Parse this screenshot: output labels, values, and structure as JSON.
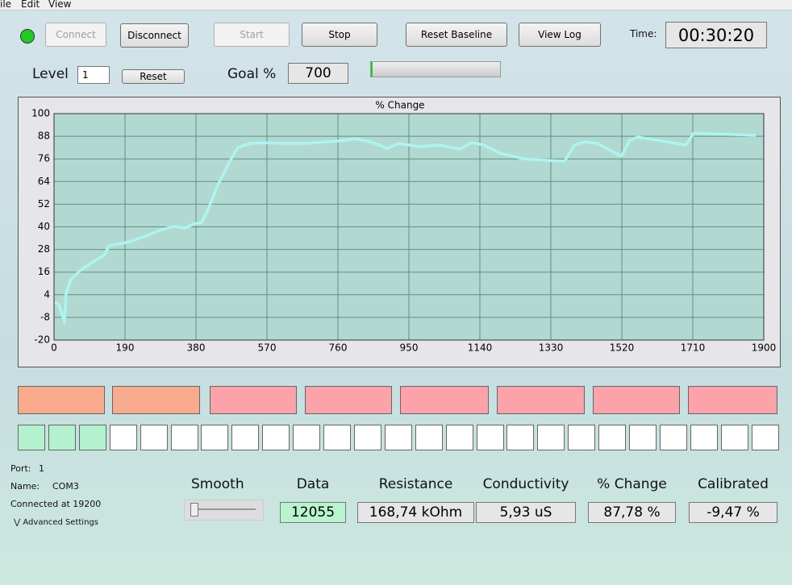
{
  "menu": [
    "ile",
    "Edit",
    "View"
  ],
  "toolbar": {
    "connect": "Connect",
    "disconnect": "Disconnect",
    "start": "Start",
    "stop": "Stop",
    "reset_baseline": "Reset Baseline",
    "view_log": "View Log",
    "time_label": "Time:",
    "time": "00:30:20"
  },
  "level": {
    "label": "Level",
    "value": "1",
    "reset": "Reset",
    "goal_label": "Goal %",
    "goal": "700"
  },
  "chart_data": {
    "type": "line",
    "title": "% Change",
    "x": [
      0,
      13,
      28,
      32,
      45,
      71,
      104,
      136,
      147,
      201,
      244,
      287,
      320,
      352,
      374,
      395,
      412,
      438,
      471,
      492,
      525,
      568,
      611,
      676,
      762,
      806,
      849,
      892,
      924,
      978,
      1032,
      1086,
      1118,
      1151,
      1194,
      1259,
      1324,
      1367,
      1393,
      1421,
      1454,
      1519,
      1540,
      1562,
      1626,
      1691,
      1713,
      1756,
      1821,
      1879
    ],
    "series": [
      {
        "color": "#aef4f0",
        "values": [
          0.1,
          -1.2,
          -10.6,
          4.3,
          12,
          17,
          21.4,
          25.3,
          30,
          32,
          35,
          38.5,
          40.2,
          39.4,
          41.5,
          42.3,
          49,
          62,
          74.8,
          82,
          84.2,
          84.6,
          84.2,
          84.2,
          85.5,
          86.7,
          85,
          81.6,
          84.2,
          82.5,
          83.3,
          81.2,
          84.6,
          83.3,
          79,
          76,
          75.2,
          74.8,
          83.3,
          85,
          84.2,
          77.4,
          85.5,
          87.6,
          85.5,
          83.3,
          89.7,
          89.3,
          88.9,
          88.5
        ]
      }
    ],
    "xlim": [
      0,
      1900
    ],
    "xticks": [
      0,
      190,
      380,
      570,
      760,
      950,
      1140,
      1330,
      1520,
      1710,
      1900
    ],
    "ylim": [
      -20,
      100
    ],
    "yticks": [
      -20,
      -8,
      4,
      16,
      28,
      40,
      52,
      64,
      76,
      88,
      100
    ],
    "grid": true,
    "background": "#b2d9d1"
  },
  "status": {
    "port_label": "Port:",
    "port": "1",
    "name_label": "Name:",
    "name": "COM3",
    "connection": "Connected at 19200",
    "advanced": "Advanced Settings"
  },
  "readouts": {
    "smooth": "Smooth",
    "fields": [
      {
        "label": "Data",
        "value": "12055"
      },
      {
        "label": "Resistance",
        "value": "168,74 kOhm"
      },
      {
        "label": "Conductivity",
        "value": "5,93 uS"
      },
      {
        "label": "% Change",
        "value": "87,78 %"
      },
      {
        "label": "Calibrated",
        "value": "-9,47 %"
      }
    ]
  }
}
